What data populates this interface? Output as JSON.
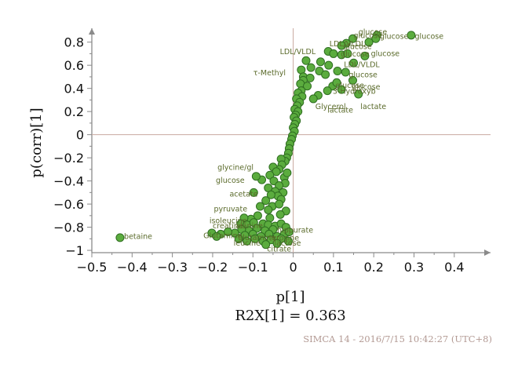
{
  "chart_data": {
    "type": "scatter",
    "xlabel": "p[1]",
    "ylabel": "p(corr)[1]",
    "subtitle": "R2X[1] = 0.363",
    "footer": "SIMCA 14 - 2016/7/15 10:42:27 (UTC+8)",
    "xlim": [
      -0.5,
      0.49
    ],
    "ylim": [
      -1.02,
      0.92
    ],
    "xticks": [
      -0.5,
      -0.4,
      -0.3,
      -0.2,
      -0.1,
      0,
      0.1,
      0.2,
      0.3,
      0.4
    ],
    "xtick_labels": [
      "−0.5",
      "−0.4",
      "−0.3",
      "−0.2",
      "−0.1",
      "0",
      "0.1",
      "0.2",
      "0.3",
      "0.4"
    ],
    "yticks": [
      -1,
      -0.8,
      -0.6,
      -0.4,
      -0.2,
      0,
      0.2,
      0.4,
      0.6,
      0.8
    ],
    "ytick_labels": [
      "−1",
      "−0.8",
      "−0.6",
      "−0.4",
      "−0.2",
      "0",
      "0.2",
      "0.4",
      "0.6",
      "0.8"
    ],
    "grid": false,
    "marker_color": "#5bac3e",
    "label_color": "#5a6a2a",
    "points": [
      {
        "x": 0.293,
        "y": 0.86
      },
      {
        "x": 0.208,
        "y": 0.86
      },
      {
        "x": 0.205,
        "y": 0.83
      },
      {
        "x": 0.188,
        "y": 0.8
      },
      {
        "x": 0.148,
        "y": 0.83
      },
      {
        "x": 0.132,
        "y": 0.79
      },
      {
        "x": 0.12,
        "y": 0.77
      },
      {
        "x": 0.087,
        "y": 0.72
      },
      {
        "x": 0.1,
        "y": 0.7
      },
      {
        "x": 0.12,
        "y": 0.69
      },
      {
        "x": 0.135,
        "y": 0.7
      },
      {
        "x": 0.178,
        "y": 0.68
      },
      {
        "x": 0.068,
        "y": 0.63
      },
      {
        "x": 0.088,
        "y": 0.6
      },
      {
        "x": 0.11,
        "y": 0.55
      },
      {
        "x": 0.13,
        "y": 0.54
      },
      {
        "x": 0.15,
        "y": 0.62
      },
      {
        "x": 0.032,
        "y": 0.64
      },
      {
        "x": 0.044,
        "y": 0.58
      },
      {
        "x": 0.02,
        "y": 0.56
      },
      {
        "x": 0.065,
        "y": 0.55
      },
      {
        "x": 0.08,
        "y": 0.52
      },
      {
        "x": 0.025,
        "y": 0.5
      },
      {
        "x": 0.042,
        "y": 0.49
      },
      {
        "x": 0.025,
        "y": 0.47
      },
      {
        "x": 0.018,
        "y": 0.44
      },
      {
        "x": 0.035,
        "y": 0.42
      },
      {
        "x": 0.098,
        "y": 0.42
      },
      {
        "x": 0.108,
        "y": 0.45
      },
      {
        "x": 0.148,
        "y": 0.47
      },
      {
        "x": 0.12,
        "y": 0.39
      },
      {
        "x": 0.085,
        "y": 0.38
      },
      {
        "x": 0.162,
        "y": 0.35
      },
      {
        "x": 0.062,
        "y": 0.34
      },
      {
        "x": 0.05,
        "y": 0.31
      },
      {
        "x": 0.02,
        "y": 0.38
      },
      {
        "x": 0.012,
        "y": 0.36
      },
      {
        "x": 0.022,
        "y": 0.33
      },
      {
        "x": 0.008,
        "y": 0.31
      },
      {
        "x": 0.016,
        "y": 0.28
      },
      {
        "x": 0.01,
        "y": 0.25
      },
      {
        "x": 0.004,
        "y": 0.22
      },
      {
        "x": 0.012,
        "y": 0.2
      },
      {
        "x": 0.006,
        "y": 0.17
      },
      {
        "x": 0.002,
        "y": 0.15
      },
      {
        "x": 0.008,
        "y": 0.12
      },
      {
        "x": 0.004,
        "y": 0.09
      },
      {
        "x": 0.0,
        "y": 0.06
      },
      {
        "x": 0.003,
        "y": 0.03
      },
      {
        "x": -0.002,
        "y": -0.01
      },
      {
        "x": -0.004,
        "y": -0.04
      },
      {
        "x": -0.008,
        "y": -0.08
      },
      {
        "x": -0.01,
        "y": -0.12
      },
      {
        "x": -0.012,
        "y": -0.16
      },
      {
        "x": -0.016,
        "y": -0.2
      },
      {
        "x": -0.02,
        "y": -0.23
      },
      {
        "x": -0.03,
        "y": -0.21
      },
      {
        "x": -0.028,
        "y": -0.26
      },
      {
        "x": -0.035,
        "y": -0.3
      },
      {
        "x": -0.05,
        "y": -0.28
      },
      {
        "x": -0.042,
        "y": -0.32
      },
      {
        "x": -0.058,
        "y": -0.35
      },
      {
        "x": -0.022,
        "y": -0.37
      },
      {
        "x": -0.015,
        "y": -0.33
      },
      {
        "x": -0.048,
        "y": -0.4
      },
      {
        "x": -0.02,
        "y": -0.42
      },
      {
        "x": -0.035,
        "y": -0.44
      },
      {
        "x": -0.062,
        "y": -0.46
      },
      {
        "x": -0.078,
        "y": -0.39
      },
      {
        "x": -0.092,
        "y": -0.36
      },
      {
        "x": -0.045,
        "y": -0.49
      },
      {
        "x": -0.025,
        "y": -0.5
      },
      {
        "x": -0.038,
        "y": -0.53
      },
      {
        "x": -0.055,
        "y": -0.52
      },
      {
        "x": -0.03,
        "y": -0.56
      },
      {
        "x": -0.068,
        "y": -0.57
      },
      {
        "x": -0.098,
        "y": -0.5
      },
      {
        "x": -0.082,
        "y": -0.62
      },
      {
        "x": -0.052,
        "y": -0.62
      },
      {
        "x": -0.035,
        "y": -0.6
      },
      {
        "x": -0.062,
        "y": -0.65
      },
      {
        "x": -0.018,
        "y": -0.66
      },
      {
        "x": -0.032,
        "y": -0.69
      },
      {
        "x": -0.058,
        "y": -0.72
      },
      {
        "x": -0.088,
        "y": -0.7
      },
      {
        "x": -0.105,
        "y": -0.73
      },
      {
        "x": -0.122,
        "y": -0.72
      },
      {
        "x": -0.13,
        "y": -0.77
      },
      {
        "x": -0.115,
        "y": -0.78
      },
      {
        "x": -0.098,
        "y": -0.76
      },
      {
        "x": -0.075,
        "y": -0.77
      },
      {
        "x": -0.062,
        "y": -0.78
      },
      {
        "x": -0.045,
        "y": -0.79
      },
      {
        "x": -0.03,
        "y": -0.77
      },
      {
        "x": -0.018,
        "y": -0.8
      },
      {
        "x": -0.05,
        "y": -0.82
      },
      {
        "x": -0.07,
        "y": -0.83
      },
      {
        "x": -0.09,
        "y": -0.81
      },
      {
        "x": -0.11,
        "y": -0.83
      },
      {
        "x": -0.128,
        "y": -0.82
      },
      {
        "x": -0.145,
        "y": -0.85
      },
      {
        "x": -0.162,
        "y": -0.84
      },
      {
        "x": -0.18,
        "y": -0.86
      },
      {
        "x": -0.202,
        "y": -0.85
      },
      {
        "x": -0.19,
        "y": -0.88
      },
      {
        "x": -0.12,
        "y": -0.87
      },
      {
        "x": -0.1,
        "y": -0.86
      },
      {
        "x": -0.08,
        "y": -0.88
      },
      {
        "x": -0.06,
        "y": -0.86
      },
      {
        "x": -0.04,
        "y": -0.88
      },
      {
        "x": -0.022,
        "y": -0.86
      },
      {
        "x": -0.01,
        "y": -0.84
      },
      {
        "x": -0.03,
        "y": -0.9
      },
      {
        "x": -0.055,
        "y": -0.91
      },
      {
        "x": -0.075,
        "y": -0.92
      },
      {
        "x": -0.095,
        "y": -0.9
      },
      {
        "x": -0.115,
        "y": -0.92
      },
      {
        "x": -0.135,
        "y": -0.9
      },
      {
        "x": -0.04,
        "y": -0.94
      },
      {
        "x": -0.012,
        "y": -0.92
      },
      {
        "x": -0.068,
        "y": -0.95
      },
      {
        "x": -0.43,
        "y": -0.89
      }
    ],
    "annotations": [
      {
        "text": "glucose",
        "x": 0.162,
        "y": 0.885
      },
      {
        "text": "glucose",
        "x": 0.15,
        "y": 0.855
      },
      {
        "text": "glucose",
        "x": 0.215,
        "y": 0.85
      },
      {
        "text": "glucose",
        "x": 0.302,
        "y": 0.85
      },
      {
        "text": "LDL/VLDL",
        "x": 0.09,
        "y": 0.785
      },
      {
        "text": "glucose",
        "x": 0.124,
        "y": 0.76
      },
      {
        "text": "LDL/VLDL",
        "x": -0.033,
        "y": 0.715
      },
      {
        "text": "glucose",
        "x": 0.118,
        "y": 0.695
      },
      {
        "text": "glucose",
        "x": 0.193,
        "y": 0.7
      },
      {
        "text": "LDL/VLDL",
        "x": 0.126,
        "y": 0.605
      },
      {
        "text": "τ-Methyl",
        "x": -0.099,
        "y": 0.535
      },
      {
        "text": "glucose",
        "x": 0.138,
        "y": 0.515
      },
      {
        "text": "glucose",
        "x": 0.105,
        "y": 0.425
      },
      {
        "text": "glucose",
        "x": 0.145,
        "y": 0.41
      },
      {
        "text": "3-Hydroxyb",
        "x": 0.098,
        "y": 0.375
      },
      {
        "text": "lactate",
        "x": 0.167,
        "y": 0.24
      },
      {
        "text": "Glycerol",
        "x": 0.055,
        "y": 0.24
      },
      {
        "text": "lactate",
        "x": 0.085,
        "y": 0.21
      },
      {
        "text": "glycine/gl",
        "x": -0.188,
        "y": -0.285
      },
      {
        "text": "glucose",
        "x": -0.192,
        "y": -0.395
      },
      {
        "text": "acetate",
        "x": -0.158,
        "y": -0.515
      },
      {
        "text": "pyruvate",
        "x": -0.197,
        "y": -0.645
      },
      {
        "text": "isoleucine",
        "x": -0.208,
        "y": -0.745
      },
      {
        "text": "creatine",
        "x": -0.2,
        "y": -0.79
      },
      {
        "text": "alanine",
        "x": -0.143,
        "y": -0.79
      },
      {
        "text": "Glutamine",
        "x": -0.223,
        "y": -0.875
      },
      {
        "text": "glutamine",
        "x": -0.137,
        "y": -0.89
      },
      {
        "text": "hippurate",
        "x": -0.04,
        "y": -0.825
      },
      {
        "text": "tyrosine",
        "x": -0.06,
        "y": -0.895
      },
      {
        "text": "leucine",
        "x": -0.148,
        "y": -0.94
      },
      {
        "text": "lactose",
        "x": -0.047,
        "y": -0.94
      },
      {
        "text": "citrate",
        "x": -0.065,
        "y": -0.99
      },
      {
        "text": "betaine",
        "x": -0.42,
        "y": -0.88
      }
    ]
  }
}
